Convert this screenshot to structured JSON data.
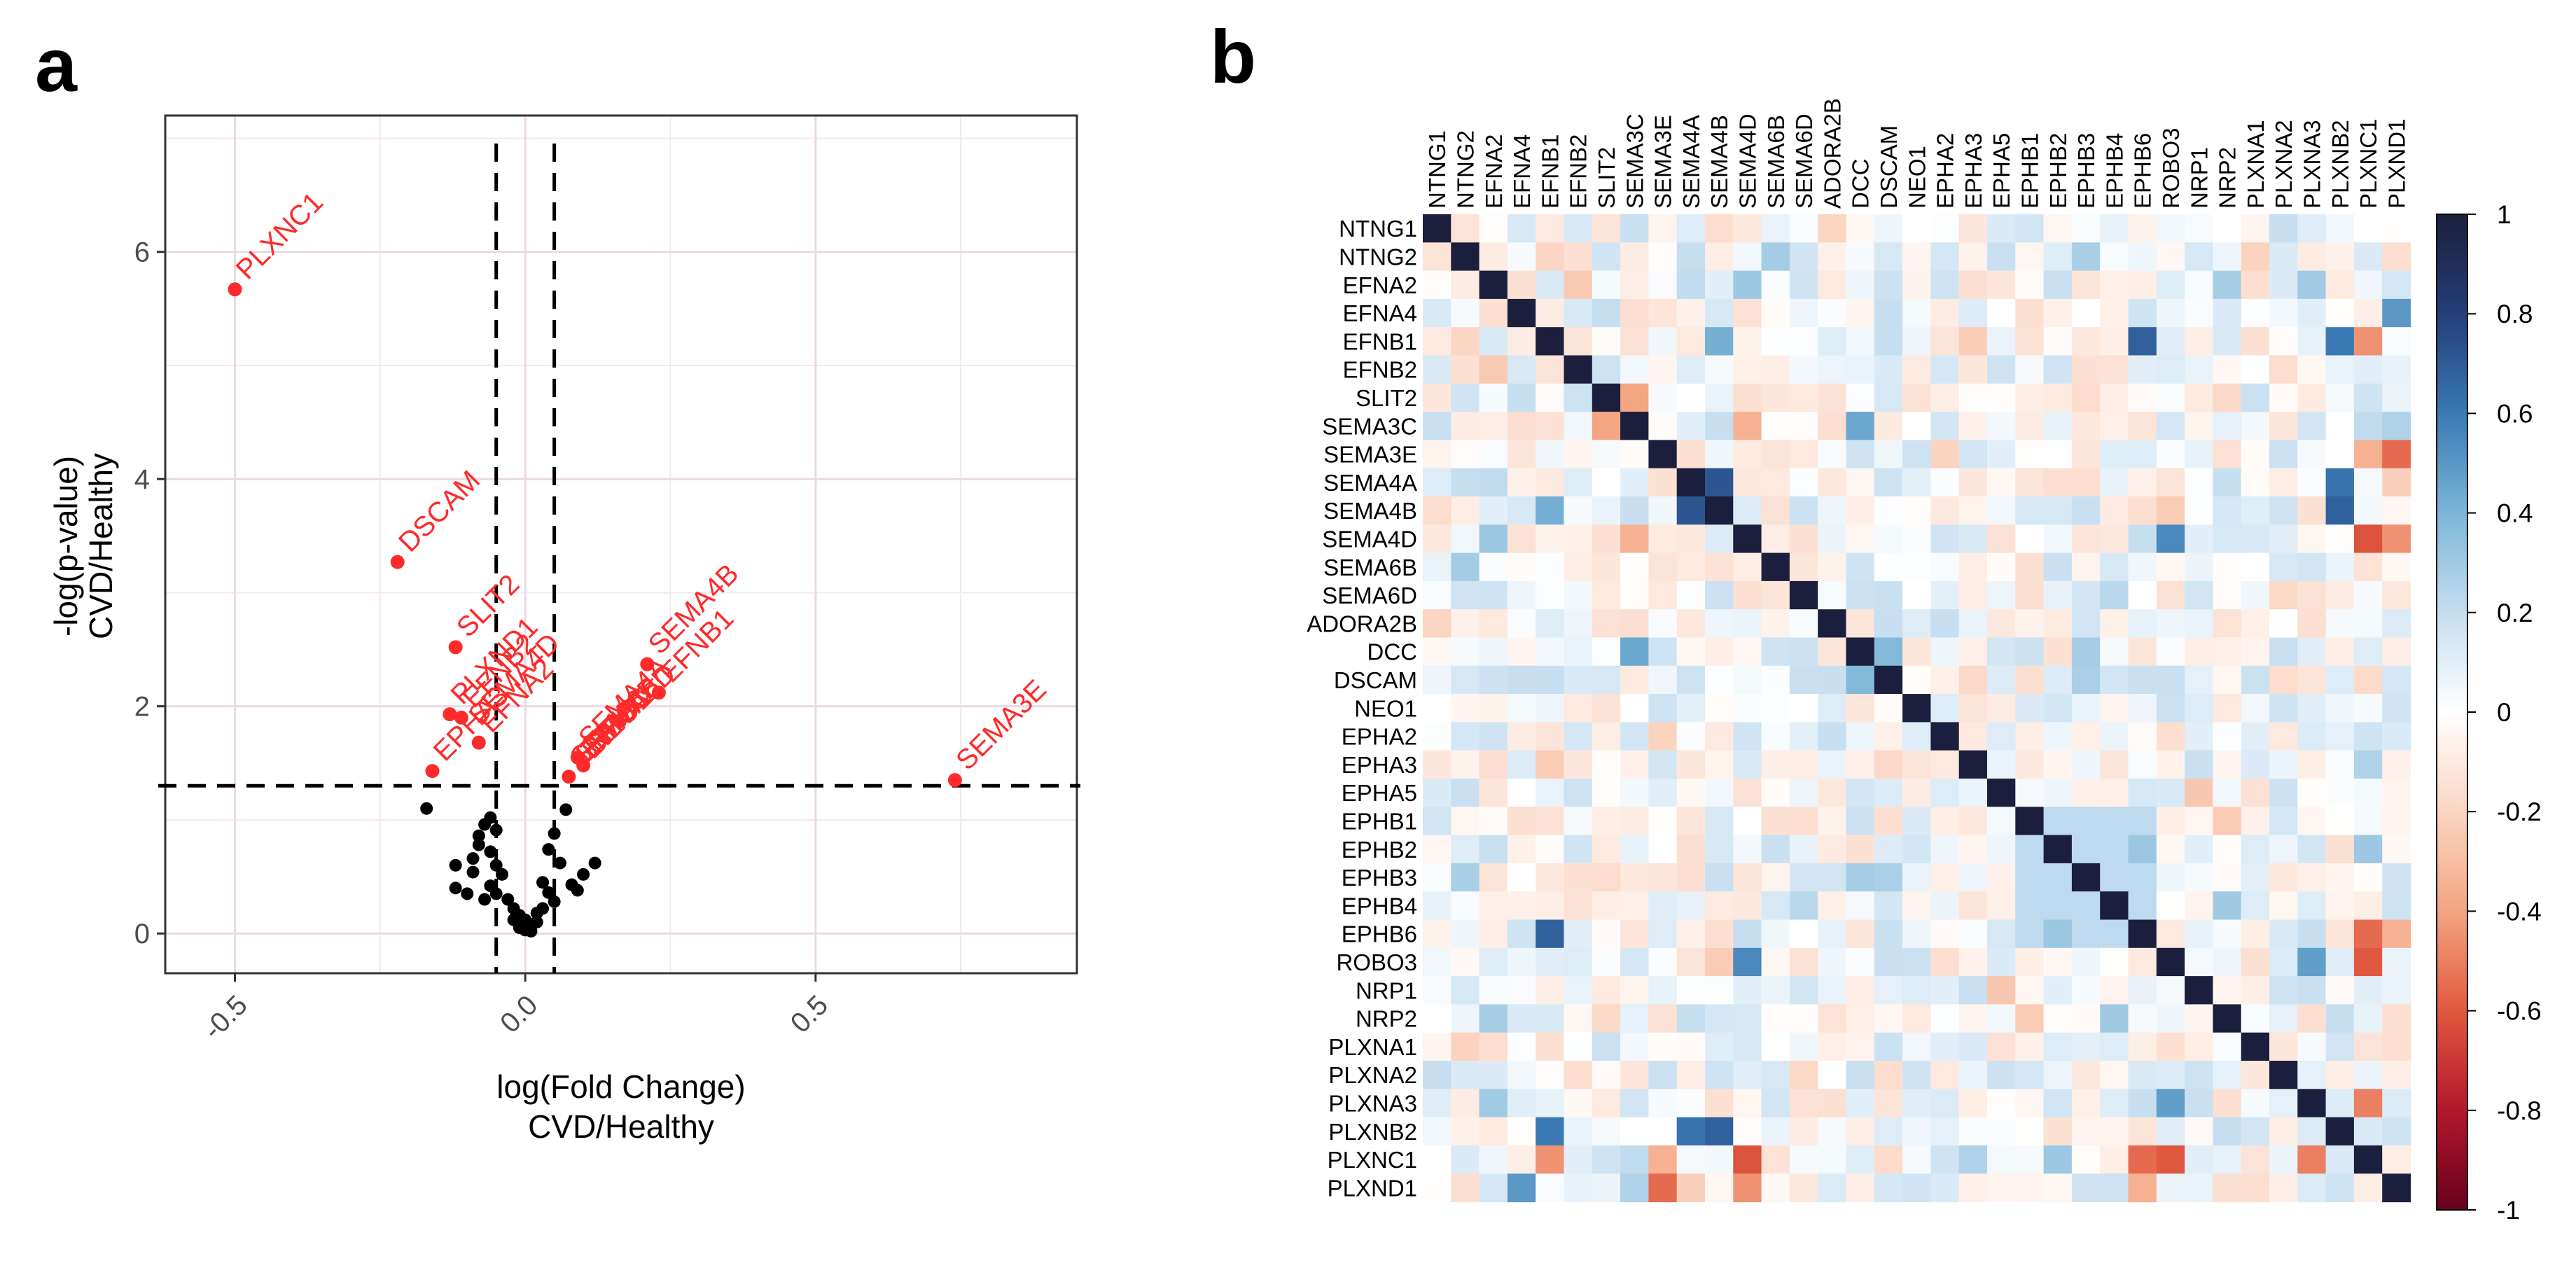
{
  "panels": {
    "a_letter": "a",
    "b_letter": "b"
  },
  "chart_data": [
    {
      "type": "scatter",
      "panel": "a",
      "xlabel_line1": "log(Fold Change)",
      "xlabel_line2": "CVD/Healthy",
      "ylabel_line1": "-log(p-value)",
      "ylabel_line2": "CVD/Healthy",
      "xlim": [
        -0.62,
        0.95
      ],
      "ylim": [
        -0.35,
        7.2
      ],
      "xticks": [
        -0.5,
        0.0,
        0.5
      ],
      "xtick_labels": [
        "-0.5",
        "0.0",
        "0.5"
      ],
      "yticks": [
        0,
        2,
        4,
        6
      ],
      "ytick_labels": [
        "0",
        "2",
        "4",
        "6"
      ],
      "thresholds": {
        "fold_change": [
          -0.05,
          0.05
        ],
        "neg_log_p": 1.3
      },
      "colors": {
        "significant": "#ff2a2a",
        "nonsignificant": "#000000"
      },
      "significant_points": [
        {
          "label": "PLXNC1",
          "x": -0.5,
          "y": 5.67
        },
        {
          "label": "DSCAM",
          "x": -0.22,
          "y": 3.27
        },
        {
          "label": "SLIT2",
          "x": -0.12,
          "y": 2.52
        },
        {
          "label": "PLXND1",
          "x": -0.13,
          "y": 1.93
        },
        {
          "label": "EFNB2",
          "x": -0.11,
          "y": 1.9
        },
        {
          "label": "EFNA2",
          "x": -0.08,
          "y": 1.68
        },
        {
          "label": "EPHA3",
          "x": -0.16,
          "y": 1.43
        },
        {
          "label": "SEMA4B",
          "x": 0.21,
          "y": 2.37
        },
        {
          "label": "EFNB1",
          "x": 0.23,
          "y": 2.12
        },
        {
          "label": "SEMA4A",
          "x": 0.09,
          "y": 1.55
        },
        {
          "label": "SEMA6D",
          "x": 0.1,
          "y": 1.48
        },
        {
          "label": "SEMA6B",
          "x": 0.075,
          "y": 1.38
        },
        {
          "label": "SEMA3E",
          "x": 0.74,
          "y": 1.35
        }
      ],
      "overlapping_labels": [
        "EPHB1",
        "EPHA2",
        "NEO1",
        "SEMA4D"
      ],
      "nonsignificant_points": [
        [
          -0.17,
          1.1
        ],
        [
          -0.06,
          1.02
        ],
        [
          -0.07,
          0.96
        ],
        [
          -0.05,
          0.91
        ],
        [
          -0.08,
          0.86
        ],
        [
          0.07,
          1.09
        ],
        [
          0.05,
          0.88
        ],
        [
          -0.08,
          0.78
        ],
        [
          -0.06,
          0.72
        ],
        [
          -0.09,
          0.66
        ],
        [
          -0.12,
          0.6
        ],
        [
          -0.09,
          0.54
        ],
        [
          -0.05,
          0.6
        ],
        [
          -0.04,
          0.52
        ],
        [
          0.04,
          0.74
        ],
        [
          0.06,
          0.62
        ],
        [
          0.12,
          0.62
        ],
        [
          0.1,
          0.52
        ],
        [
          0.08,
          0.43
        ],
        [
          -0.12,
          0.4
        ],
        [
          -0.1,
          0.35
        ],
        [
          -0.06,
          0.42
        ],
        [
          -0.05,
          0.35
        ],
        [
          -0.03,
          0.3
        ],
        [
          0.03,
          0.45
        ],
        [
          0.04,
          0.36
        ],
        [
          0.05,
          0.28
        ],
        [
          0.09,
          0.38
        ],
        [
          -0.07,
          0.3
        ],
        [
          -0.02,
          0.22
        ],
        [
          -0.01,
          0.16
        ],
        [
          0.0,
          0.12
        ],
        [
          0.01,
          0.08
        ],
        [
          -0.01,
          0.05
        ],
        [
          0.0,
          0.03
        ],
        [
          0.02,
          0.18
        ],
        [
          0.02,
          0.1
        ],
        [
          -0.02,
          0.12
        ],
        [
          0.03,
          0.22
        ],
        [
          0.01,
          0.02
        ]
      ]
    },
    {
      "type": "heatmap",
      "panel": "b",
      "genes": [
        "NTNG1",
        "NTNG2",
        "EFNA2",
        "EFNA4",
        "EFNB1",
        "EFNB2",
        "SLIT2",
        "SEMA3C",
        "SEMA3E",
        "SEMA4A",
        "SEMA4B",
        "SEMA4D",
        "SEMA6B",
        "SEMA6D",
        "ADORA2B",
        "DCC",
        "DSCAM",
        "NEO1",
        "EPHA2",
        "EPHA3",
        "EPHA5",
        "EPHB1",
        "EPHB2",
        "EPHB3",
        "EPHB4",
        "EPHB6",
        "ROBO3",
        "NRP1",
        "NRP2",
        "PLXNA1",
        "PLXNA2",
        "PLXNA3",
        "PLXNB2",
        "PLXNC1",
        "PLXND1"
      ],
      "color_scale": {
        "min": -1,
        "max": 1,
        "low": "#67001f",
        "mid": "#ffffff",
        "high": "#1b1f3d"
      },
      "colorbar_ticks": [
        "1",
        "0.8",
        "0.6",
        "0.4",
        "0.2",
        "0",
        "-0.2",
        "-0.4",
        "-0.6",
        "-0.8",
        "-1"
      ],
      "notable_correlations": [
        {
          "a": "SEMA4A",
          "b": "SEMA4B",
          "r": 0.72
        },
        {
          "a": "EFNB1",
          "b": "EPHB6",
          "r": 0.68
        },
        {
          "a": "SEMA4B",
          "b": "PLXNB2",
          "r": 0.68
        },
        {
          "a": "EFNB1",
          "b": "PLXNB2",
          "r": 0.6
        },
        {
          "a": "SEMA4A",
          "b": "PLXNB2",
          "r": 0.62
        },
        {
          "a": "EFNA4",
          "b": "PLXND1",
          "r": 0.5
        },
        {
          "a": "SEMA4D",
          "b": "ROBO3",
          "r": 0.55
        },
        {
          "a": "SEMA3C",
          "b": "DCC",
          "r": 0.45
        },
        {
          "a": "DCC",
          "b": "DSCAM",
          "r": 0.38
        },
        {
          "a": "PLXNA3",
          "b": "ROBO3",
          "r": 0.48
        },
        {
          "a": "SEMA4B",
          "b": "EFNB1",
          "r": 0.42
        },
        {
          "a": "SEMA4D",
          "b": "PLXNC1",
          "r": -0.62
        },
        {
          "a": "SEMA3E",
          "b": "PLXND1",
          "r": -0.55
        },
        {
          "a": "EPHB6",
          "b": "PLXNC1",
          "r": -0.55
        },
        {
          "a": "ROBO3",
          "b": "PLXNC1",
          "r": -0.6
        },
        {
          "a": "EFNB1",
          "b": "PLXNC1",
          "r": -0.45
        },
        {
          "a": "SEMA4D",
          "b": "PLXND1",
          "r": -0.45
        },
        {
          "a": "PLXNA3",
          "b": "PLXNC1",
          "r": -0.5
        },
        {
          "a": "SEMA3C",
          "b": "SLIT2",
          "r": -0.4
        },
        {
          "a": "SEMA3C",
          "b": "SEMA4D",
          "r": -0.35
        },
        {
          "a": "EPHB6",
          "b": "PLXND1",
          "r": -0.35
        },
        {
          "a": "SEMA3E",
          "b": "PLXNC1",
          "r": -0.35
        }
      ]
    }
  ]
}
